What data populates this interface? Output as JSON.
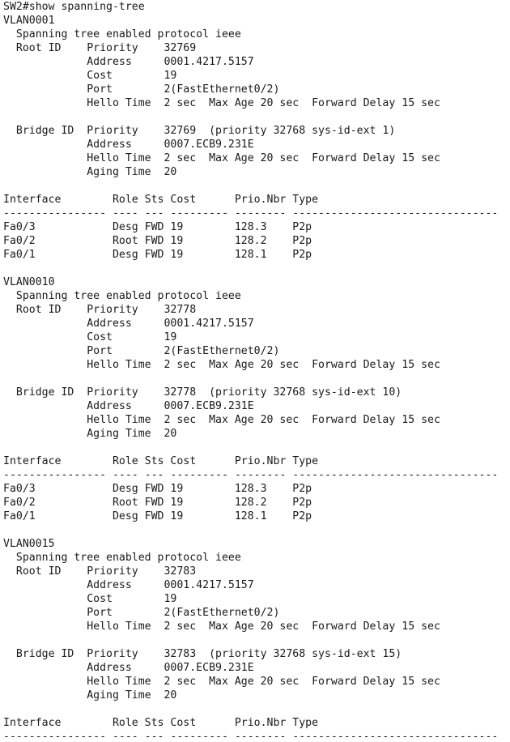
{
  "terminal": {
    "lines": [
      "SW2#show spanning-tree",
      "VLAN0001",
      "  Spanning tree enabled protocol ieee",
      "  Root ID    Priority    32769",
      "             Address     0001.4217.5157",
      "             Cost        19",
      "             Port        2(FastEthernet0/2)",
      "             Hello Time  2 sec  Max Age 20 sec  Forward Delay 15 sec",
      "",
      "  Bridge ID  Priority    32769  (priority 32768 sys-id-ext 1)",
      "             Address     0007.ECB9.231E",
      "             Hello Time  2 sec  Max Age 20 sec  Forward Delay 15 sec",
      "             Aging Time  20",
      "",
      "Interface        Role Sts Cost      Prio.Nbr Type",
      "---------------- ---- --- --------- -------- --------------------------------",
      "Fa0/3            Desg FWD 19        128.3    P2p",
      "Fa0/2            Root FWD 19        128.2    P2p",
      "Fa0/1            Desg FWD 19        128.1    P2p",
      "",
      "VLAN0010",
      "  Spanning tree enabled protocol ieee",
      "  Root ID    Priority    32778",
      "             Address     0001.4217.5157",
      "             Cost        19",
      "             Port        2(FastEthernet0/2)",
      "             Hello Time  2 sec  Max Age 20 sec  Forward Delay 15 sec",
      "",
      "  Bridge ID  Priority    32778  (priority 32768 sys-id-ext 10)",
      "             Address     0007.ECB9.231E",
      "             Hello Time  2 sec  Max Age 20 sec  Forward Delay 15 sec",
      "             Aging Time  20",
      "",
      "Interface        Role Sts Cost      Prio.Nbr Type",
      "---------------- ---- --- --------- -------- --------------------------------",
      "Fa0/3            Desg FWD 19        128.3    P2p",
      "Fa0/2            Root FWD 19        128.2    P2p",
      "Fa0/1            Desg FWD 19        128.1    P2p",
      "",
      "VLAN0015",
      "  Spanning tree enabled protocol ieee",
      "  Root ID    Priority    32783",
      "             Address     0001.4217.5157",
      "             Cost        19",
      "             Port        2(FastEthernet0/2)",
      "             Hello Time  2 sec  Max Age 20 sec  Forward Delay 15 sec",
      "",
      "  Bridge ID  Priority    32783  (priority 32768 sys-id-ext 15)",
      "             Address     0007.ECB9.231E",
      "             Hello Time  2 sec  Max Age 20 sec  Forward Delay 15 sec",
      "             Aging Time  20",
      "",
      "Interface        Role Sts Cost      Prio.Nbr Type",
      "---------------- ---- --- --------- -------- --------------------------------"
    ]
  }
}
